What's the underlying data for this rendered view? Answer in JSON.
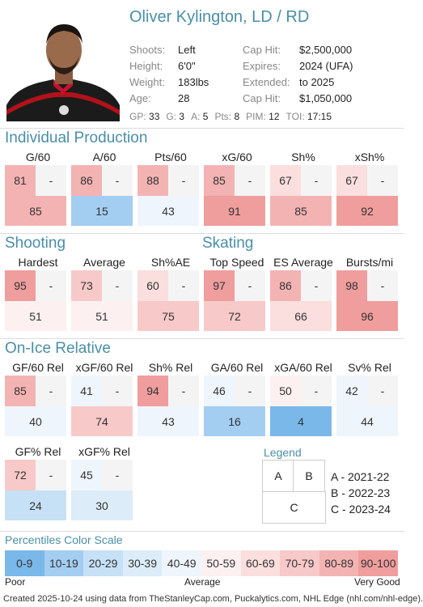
{
  "player": {
    "name": "Oliver Kylington, LD / RD",
    "info": [
      {
        "label": "Shoots:",
        "value": "Left"
      },
      {
        "label": "Height:",
        "value": "6'0\""
      },
      {
        "label": "Weight:",
        "value": "183lbs"
      },
      {
        "label": "Age:",
        "value": "28"
      }
    ],
    "contract": [
      {
        "label": "Cap Hit:",
        "value": "$2,500,000"
      },
      {
        "label": "Expires:",
        "value": "2024 (UFA)"
      },
      {
        "label": "Extended:",
        "value": "to 2025"
      },
      {
        "label": "Cap Hit:",
        "value": "$1,050,000"
      }
    ],
    "stats": [
      {
        "label": "GP:",
        "value": "33"
      },
      {
        "label": "G:",
        "value": "3"
      },
      {
        "label": "A:",
        "value": "5"
      },
      {
        "label": "Pts:",
        "value": "8"
      },
      {
        "label": "PIM:",
        "value": "12"
      },
      {
        "label": "TOI:",
        "value": "17:15"
      }
    ]
  },
  "sections": {
    "individual": "Individual Production",
    "shooting": "Shooting",
    "skating": "Skating",
    "onice": "On-Ice Relative"
  },
  "metrics": [
    {
      "label": "G/60",
      "a": "81",
      "b": "-",
      "c": "85"
    },
    {
      "label": "A/60",
      "a": "86",
      "b": "-",
      "c": "15"
    },
    {
      "label": "Pts/60",
      "a": "88",
      "b": "-",
      "c": "43"
    },
    {
      "label": "xG/60",
      "a": "85",
      "b": "-",
      "c": "91"
    },
    {
      "label": "Sh%",
      "a": "67",
      "b": "-",
      "c": "85"
    },
    {
      "label": "xSh%",
      "a": "67",
      "b": "-",
      "c": "92"
    },
    {
      "label": "Hardest",
      "a": "95",
      "b": "-",
      "c": "51"
    },
    {
      "label": "Average",
      "a": "73",
      "b": "-",
      "c": "51"
    },
    {
      "label": "Sh%AE",
      "a": "60",
      "b": "-",
      "c": "75"
    },
    {
      "label": "Top Speed",
      "a": "97",
      "b": "-",
      "c": "72"
    },
    {
      "label": "ES Average",
      "a": "86",
      "b": "-",
      "c": "66"
    },
    {
      "label": "Bursts/mi",
      "a": "98",
      "b": "-",
      "c": "96"
    },
    {
      "label": "GF/60 Rel",
      "a": "85",
      "b": "-",
      "c": "40"
    },
    {
      "label": "xGF/60 Rel",
      "a": "41",
      "b": "-",
      "c": "74"
    },
    {
      "label": "Sh% Rel",
      "a": "94",
      "b": "-",
      "c": "43"
    },
    {
      "label": "GA/60 Rel",
      "a": "46",
      "b": "-",
      "c": "16"
    },
    {
      "label": "xGA/60 Rel",
      "a": "50",
      "b": "-",
      "c": "4"
    },
    {
      "label": "Sv% Rel",
      "a": "42",
      "b": "-",
      "c": "44"
    },
    {
      "label": "GF% Rel",
      "a": "72",
      "b": "-",
      "c": "24"
    },
    {
      "label": "xGF% Rel",
      "a": "45",
      "b": "-",
      "c": "30"
    }
  ],
  "legend": {
    "title": "Legend",
    "a": "A",
    "b": "B",
    "c": "C",
    "entries": [
      "A - 2021-22",
      "B - 2022-23",
      "C - 2023-24"
    ]
  },
  "scale": {
    "title": "Percentiles Color Scale",
    "bins": [
      "0-9",
      "10-19",
      "20-29",
      "30-39",
      "40-49",
      "50-59",
      "60-69",
      "70-79",
      "80-89",
      "90-100"
    ],
    "colors": [
      "#7ab8ea",
      "#a3cdf1",
      "#c6e0f6",
      "#dcecf9",
      "#eef5fc",
      "#fdf0f0",
      "#fbdede",
      "#f8c9c9",
      "#f4b3b3",
      "#f09d9d"
    ],
    "poor": "Poor",
    "average": "Average",
    "very_good": "Very Good"
  },
  "footer": "Created 2025-10-24 using data from TheStanleyCap.com, Puckalytics.com, NHL Edge (nhl.com/nhl-edge)."
}
